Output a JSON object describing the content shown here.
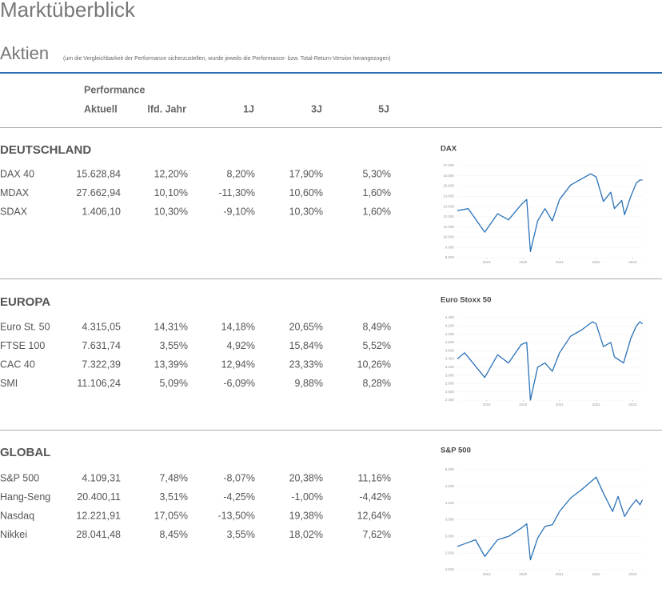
{
  "header": {
    "title": "Marktüberblick",
    "subtitle": "Aktien",
    "note": "(um die Vergleichbarkeit der Performance sicherzustellen, wurde jeweils die Performance- bzw. Total-Return-Version herangezogen)"
  },
  "table": {
    "group_header": "Performance",
    "columns": [
      "Aktuell",
      "lfd. Jahr",
      "1J",
      "3J",
      "5J"
    ]
  },
  "sections": [
    {
      "name": "DEUTSCHLAND",
      "rows": [
        [
          "DAX 40",
          "15.628,84",
          "12,20%",
          "8,20%",
          "17,90%",
          "5,30%"
        ],
        [
          "MDAX",
          "27.662,94",
          "10,10%",
          "-11,30%",
          "10,60%",
          "1,60%"
        ],
        [
          "SDAX",
          "1.406,10",
          "10,30%",
          "-9,10%",
          "10,30%",
          "1,60%"
        ]
      ],
      "chart": {
        "type": "line",
        "title": "DAX",
        "color": "#2a72b8",
        "grid": true,
        "x": [
          2018.2,
          2018.5,
          2018.95,
          2019.3,
          2019.6,
          2019.95,
          2020.1,
          2020.2,
          2020.4,
          2020.6,
          2020.8,
          2021.0,
          2021.3,
          2021.6,
          2021.85,
          2022.0,
          2022.2,
          2022.4,
          2022.5,
          2022.7,
          2022.78,
          2022.95,
          2023.1,
          2023.2,
          2023.27
        ],
        "values": [
          12600,
          12800,
          10500,
          12300,
          11700,
          13200,
          13700,
          8600,
          11600,
          12800,
          11600,
          13700,
          15100,
          15700,
          16200,
          15900,
          13500,
          14400,
          12800,
          13600,
          12200,
          14000,
          15300,
          15600,
          15600
        ],
        "xlim": [
          2018.2,
          2023.3
        ],
        "xticks": [
          2019,
          2020,
          2021,
          2022,
          2023
        ],
        "ylim": [
          8000,
          17000
        ],
        "yticks": [
          {
            "value": 8000,
            "label": "8.000"
          },
          {
            "value": 9000,
            "label": "9.000"
          },
          {
            "value": 10000,
            "label": "10.000"
          },
          {
            "value": 11000,
            "label": "11.000"
          },
          {
            "value": 12000,
            "label": "12.000"
          },
          {
            "value": 13000,
            "label": "13.000"
          },
          {
            "value": 14000,
            "label": "14.000"
          },
          {
            "value": 15000,
            "label": "15.000"
          },
          {
            "value": 16000,
            "label": "16.000"
          },
          {
            "value": 17000,
            "label": "17.000"
          }
        ]
      }
    },
    {
      "name": "EUROPA",
      "rows": [
        [
          "Euro St. 50",
          "4.315,05",
          "14,31%",
          "14,18%",
          "20,65%",
          "8,49%"
        ],
        [
          "FTSE 100",
          "7.631,74",
          "3,55%",
          "4,92%",
          "15,84%",
          "5,52%"
        ],
        [
          "CAC 40",
          "7.322,39",
          "13,39%",
          "12,94%",
          "23,33%",
          "10,26%"
        ],
        [
          "SMI",
          "11.106,24",
          "5,09%",
          "-6,09%",
          "9,88%",
          "8,28%"
        ]
      ],
      "chart": {
        "type": "line",
        "title": "Euro Stoxx 50",
        "color": "#2a72b8",
        "grid": true,
        "x": [
          2018.2,
          2018.4,
          2018.95,
          2019.3,
          2019.6,
          2019.95,
          2020.1,
          2020.2,
          2020.4,
          2020.6,
          2020.8,
          2021.0,
          2021.3,
          2021.6,
          2021.9,
          2022.0,
          2022.2,
          2022.4,
          2022.5,
          2022.75,
          2022.95,
          2023.1,
          2023.2,
          2023.27
        ],
        "values": [
          3400,
          3550,
          2950,
          3500,
          3300,
          3750,
          3800,
          2400,
          3200,
          3300,
          3100,
          3550,
          3950,
          4100,
          4300,
          4250,
          3700,
          3800,
          3450,
          3300,
          3900,
          4200,
          4300,
          4250
        ],
        "xlim": [
          2018.2,
          2023.3
        ],
        "xticks": [
          2019,
          2020,
          2021,
          2022,
          2023
        ],
        "ylim": [
          2400,
          4400
        ],
        "yticks": [
          {
            "value": 2400,
            "label": "2.400"
          },
          {
            "value": 2600,
            "label": "2.600"
          },
          {
            "value": 2800,
            "label": "2.800"
          },
          {
            "value": 3000,
            "label": "3.000"
          },
          {
            "value": 3200,
            "label": "3.200"
          },
          {
            "value": 3400,
            "label": "3.400"
          },
          {
            "value": 3600,
            "label": "3.600"
          },
          {
            "value": 3800,
            "label": "3.800"
          },
          {
            "value": 4000,
            "label": "4.000"
          },
          {
            "value": 4200,
            "label": "4.200"
          },
          {
            "value": 4400,
            "label": "4.400"
          }
        ]
      }
    },
    {
      "name": "GLOBAL",
      "rows": [
        [
          "S&P 500",
          "4.109,31",
          "7,48%",
          "-8,07%",
          "20,38%",
          "11,16%"
        ],
        [
          "Hang-Seng",
          "20.400,11",
          "3,51%",
          "-4,25%",
          "-1,00%",
          "-4,42%"
        ],
        [
          "Nasdaq",
          "12.221,91",
          "17,05%",
          "-13,50%",
          "19,38%",
          "12,64%"
        ],
        [
          "Nikkei",
          "28.041,48",
          "8,45%",
          "3,55%",
          "18,02%",
          "7,62%"
        ]
      ],
      "chart": {
        "type": "line",
        "title": "S&P 500",
        "color": "#2a72b8",
        "grid": true,
        "x": [
          2018.2,
          2018.7,
          2018.95,
          2019.3,
          2019.6,
          2019.95,
          2020.1,
          2020.2,
          2020.4,
          2020.6,
          2020.8,
          2021.0,
          2021.3,
          2021.6,
          2022.0,
          2022.2,
          2022.45,
          2022.6,
          2022.78,
          2022.95,
          2023.1,
          2023.2,
          2023.27
        ],
        "values": [
          2700,
          2900,
          2400,
          2900,
          3000,
          3250,
          3380,
          2300,
          2950,
          3300,
          3350,
          3750,
          4150,
          4400,
          4780,
          4300,
          3750,
          4200,
          3600,
          3900,
          4100,
          3950,
          4100
        ],
        "xlim": [
          2018.2,
          2023.3
        ],
        "xticks": [
          2019,
          2020,
          2021,
          2022,
          2023
        ],
        "ylim": [
          2000,
          5000
        ],
        "yticks": [
          {
            "value": 2000,
            "label": "2.000"
          },
          {
            "value": 2500,
            "label": "2.500"
          },
          {
            "value": 3000,
            "label": "3.000"
          },
          {
            "value": 3500,
            "label": "3.500"
          },
          {
            "value": 4000,
            "label": "4.000"
          },
          {
            "value": 4500,
            "label": "4.500"
          },
          {
            "value": 5000,
            "label": "5.000"
          }
        ]
      }
    }
  ]
}
